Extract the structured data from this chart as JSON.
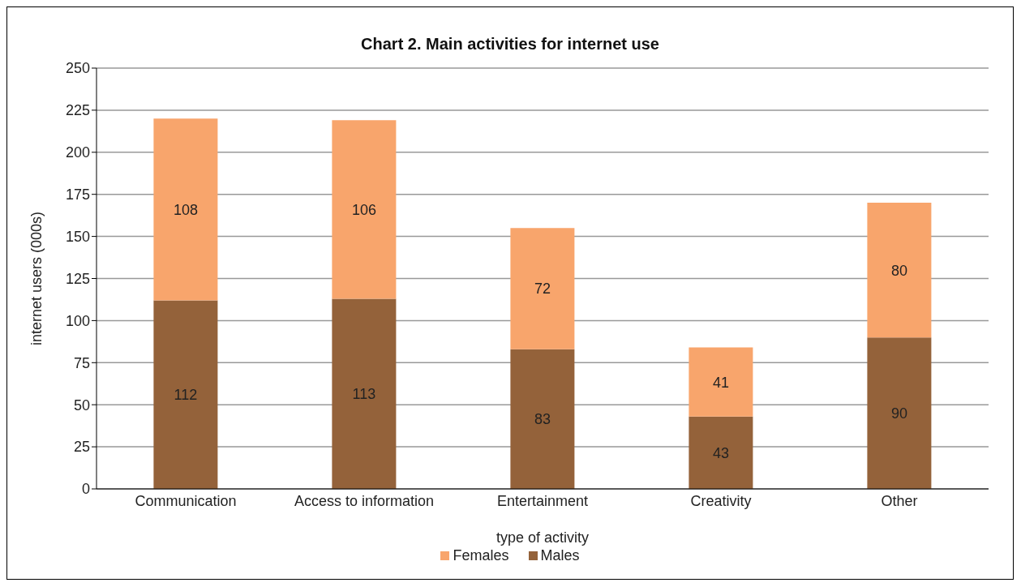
{
  "chart_data": {
    "type": "bar",
    "title": "Chart 2.  Main activities for internet use",
    "xlabel": "type of activity",
    "ylabel": "internet users (000s)",
    "categories": [
      "Communication",
      "Access to information",
      "Entertainment",
      "Creativity",
      "Other"
    ],
    "series": [
      {
        "name": "Males",
        "color": "#94623a",
        "values": [
          112,
          113,
          83,
          43,
          90
        ]
      },
      {
        "name": "Females",
        "color": "#f8a56c",
        "values": [
          108,
          106,
          72,
          41,
          80
        ]
      }
    ],
    "stacked": true,
    "data_labels": true,
    "ylim": [
      0,
      250
    ],
    "yticks": [
      0,
      25,
      50,
      75,
      100,
      125,
      150,
      175,
      200,
      225,
      250
    ],
    "grid": "y",
    "legend": "bottom"
  }
}
